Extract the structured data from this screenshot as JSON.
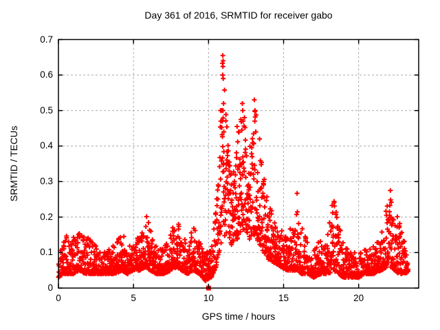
{
  "window": {
    "title": "Day 361 of 2016, SRMTID for receiver gabo"
  },
  "colors": {
    "background": "#ffffff",
    "axis": "#000000",
    "text": "#000000",
    "grid": "#a8a8a8",
    "marker": "#ff0000"
  },
  "chart_data": {
    "type": "scatter",
    "title": "Day 361 of 2016, SRMTID for receiver gabo",
    "xlabel": "GPS time / hours",
    "ylabel": "SRMTID / TECUs",
    "xlim": [
      0,
      24
    ],
    "ylim": [
      0,
      0.7
    ],
    "xticks": [
      0,
      5,
      10,
      15,
      20
    ],
    "yticks": [
      0,
      0.1,
      0.2,
      0.3,
      0.4,
      0.5,
      0.6,
      0.7
    ],
    "grid": "dashed-major",
    "legend": "none",
    "marker": {
      "shape": "plus",
      "color": "#ff0000",
      "size": 7
    },
    "x_data_range": [
      0,
      23.3
    ],
    "description": "Dense 30-second SRMTID scatter: quiet band ~0.03-0.16 TECU with minor bumps near 5.9h (0.22) and 7.9h (0.21); main disturbance 10.5-13.7h peaking 0.65 at ~11.0h with secondary crests ~0.52 at 12.3h and 13.1h; later bumps ~0.28 at 15.9h, ~0.26 at 18.3h, ~0.29 at 22.1h; single zero-value sample at 10.0h.",
    "envelope_bins": [
      [
        0.0,
        0.03,
        0.15
      ],
      [
        0.3,
        0.04,
        0.16
      ],
      [
        0.7,
        0.04,
        0.14
      ],
      [
        1.0,
        0.04,
        0.15
      ],
      [
        1.4,
        0.05,
        0.16
      ],
      [
        1.8,
        0.04,
        0.15
      ],
      [
        2.2,
        0.04,
        0.14
      ],
      [
        2.6,
        0.04,
        0.11
      ],
      [
        3.0,
        0.04,
        0.1
      ],
      [
        3.4,
        0.04,
        0.11
      ],
      [
        3.8,
        0.04,
        0.13
      ],
      [
        4.2,
        0.05,
        0.16
      ],
      [
        4.6,
        0.04,
        0.13
      ],
      [
        5.0,
        0.05,
        0.12
      ],
      [
        5.4,
        0.05,
        0.16
      ],
      [
        5.8,
        0.06,
        0.22
      ],
      [
        6.1,
        0.05,
        0.17
      ],
      [
        6.5,
        0.04,
        0.12
      ],
      [
        7.0,
        0.04,
        0.11
      ],
      [
        7.5,
        0.05,
        0.16
      ],
      [
        7.9,
        0.06,
        0.21
      ],
      [
        8.2,
        0.05,
        0.15
      ],
      [
        8.6,
        0.04,
        0.13
      ],
      [
        9.0,
        0.05,
        0.18
      ],
      [
        9.4,
        0.04,
        0.13
      ],
      [
        9.8,
        0.02,
        0.1
      ],
      [
        10.2,
        0.03,
        0.12
      ],
      [
        10.5,
        0.06,
        0.22
      ],
      [
        10.8,
        0.12,
        0.5
      ],
      [
        11.0,
        0.15,
        0.65
      ],
      [
        11.2,
        0.14,
        0.48
      ],
      [
        11.5,
        0.12,
        0.36
      ],
      [
        11.8,
        0.13,
        0.4
      ],
      [
        12.1,
        0.15,
        0.46
      ],
      [
        12.3,
        0.16,
        0.52
      ],
      [
        12.6,
        0.14,
        0.4
      ],
      [
        12.9,
        0.13,
        0.42
      ],
      [
        13.1,
        0.15,
        0.52
      ],
      [
        13.4,
        0.12,
        0.42
      ],
      [
        13.7,
        0.1,
        0.32
      ],
      [
        14.0,
        0.08,
        0.24
      ],
      [
        14.4,
        0.07,
        0.2
      ],
      [
        14.8,
        0.06,
        0.18
      ],
      [
        15.2,
        0.05,
        0.14
      ],
      [
        15.6,
        0.05,
        0.19
      ],
      [
        15.9,
        0.05,
        0.28
      ],
      [
        16.2,
        0.04,
        0.18
      ],
      [
        16.6,
        0.04,
        0.13
      ],
      [
        17.0,
        0.03,
        0.11
      ],
      [
        17.5,
        0.04,
        0.14
      ],
      [
        18.0,
        0.04,
        0.17
      ],
      [
        18.3,
        0.05,
        0.26
      ],
      [
        18.6,
        0.04,
        0.21
      ],
      [
        19.0,
        0.03,
        0.12
      ],
      [
        19.5,
        0.03,
        0.1
      ],
      [
        20.0,
        0.03,
        0.1
      ],
      [
        20.5,
        0.04,
        0.11
      ],
      [
        21.0,
        0.04,
        0.13
      ],
      [
        21.5,
        0.05,
        0.15
      ],
      [
        21.9,
        0.06,
        0.24
      ],
      [
        22.1,
        0.06,
        0.29
      ],
      [
        22.4,
        0.05,
        0.22
      ],
      [
        22.7,
        0.04,
        0.19
      ],
      [
        23.0,
        0.04,
        0.15
      ],
      [
        23.3,
        0.04,
        0.11
      ]
    ],
    "notable_high_points": [
      [
        10.95,
        0.655
      ],
      [
        10.97,
        0.64
      ],
      [
        10.93,
        0.633
      ],
      [
        10.96,
        0.624
      ],
      [
        10.94,
        0.6
      ],
      [
        10.98,
        0.59
      ],
      [
        11.0,
        0.52
      ],
      [
        10.96,
        0.5
      ],
      [
        10.92,
        0.47
      ],
      [
        11.02,
        0.44
      ],
      [
        12.25,
        0.52
      ],
      [
        12.28,
        0.5
      ],
      [
        12.3,
        0.47
      ],
      [
        12.22,
        0.445
      ],
      [
        13.05,
        0.53
      ],
      [
        13.1,
        0.5
      ],
      [
        13.08,
        0.47
      ],
      [
        13.15,
        0.44
      ],
      [
        11.9,
        0.455
      ],
      [
        12.0,
        0.44
      ],
      [
        13.4,
        0.42
      ],
      [
        10.8,
        0.5
      ],
      [
        10.82,
        0.47
      ]
    ],
    "zero_outlier": {
      "x": 10.0,
      "y": 0.0,
      "marker": "filled-square"
    },
    "points_per_hour": 95,
    "random_seed": 20161361
  }
}
